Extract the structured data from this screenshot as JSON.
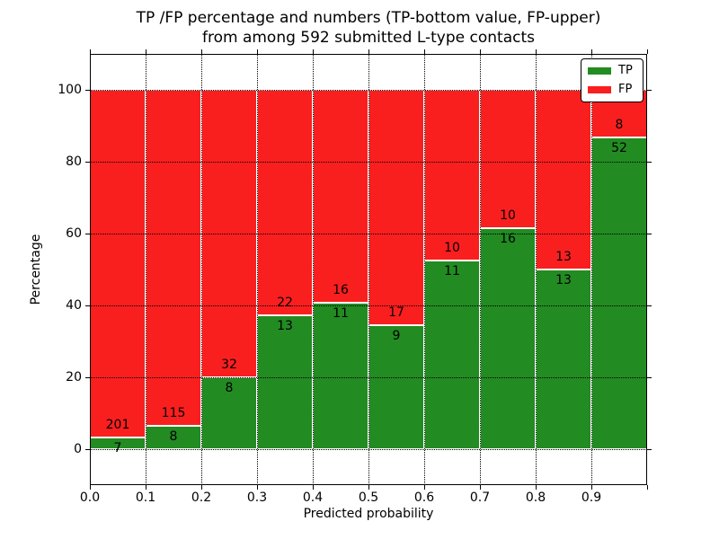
{
  "chart_data": {
    "type": "bar",
    "stacked": true,
    "normalized_to_percent": true,
    "title_lines": [
      "TP /FP percentage and numbers (TP-bottom value, FP-upper)",
      "from among 592 submitted L-type contacts"
    ],
    "total_contacts": 592,
    "xlabel": "Predicted probability",
    "ylabel": "Percentage",
    "xlim": [
      0.0,
      1.0
    ],
    "ylim": [
      -10,
      110
    ],
    "x_tick_labels": [
      "0.0",
      "0.1",
      "0.2",
      "0.3",
      "0.4",
      "0.5",
      "0.6",
      "0.7",
      "0.8",
      "0.9"
    ],
    "y_tick_values": [
      0,
      20,
      40,
      60,
      80,
      100
    ],
    "grid_style": "dotted",
    "legend_position": "upper right",
    "series": [
      {
        "name": "TP",
        "color": "#228b22"
      },
      {
        "name": "FP",
        "color": "#fa1f1f"
      }
    ],
    "bins": [
      {
        "x_start": 0.0,
        "x_end": 0.1,
        "tp": 7,
        "fp": 201
      },
      {
        "x_start": 0.1,
        "x_end": 0.2,
        "tp": 8,
        "fp": 115
      },
      {
        "x_start": 0.2,
        "x_end": 0.3,
        "tp": 8,
        "fp": 32
      },
      {
        "x_start": 0.3,
        "x_end": 0.4,
        "tp": 13,
        "fp": 22
      },
      {
        "x_start": 0.4,
        "x_end": 0.5,
        "tp": 11,
        "fp": 16
      },
      {
        "x_start": 0.5,
        "x_end": 0.6,
        "tp": 9,
        "fp": 17
      },
      {
        "x_start": 0.6,
        "x_end": 0.7,
        "tp": 11,
        "fp": 10
      },
      {
        "x_start": 0.7,
        "x_end": 0.8,
        "tp": 16,
        "fp": 10
      },
      {
        "x_start": 0.8,
        "x_end": 0.9,
        "tp": 13,
        "fp": 13
      },
      {
        "x_start": 0.9,
        "x_end": 1.0,
        "tp": 52,
        "fp": 8
      }
    ]
  }
}
